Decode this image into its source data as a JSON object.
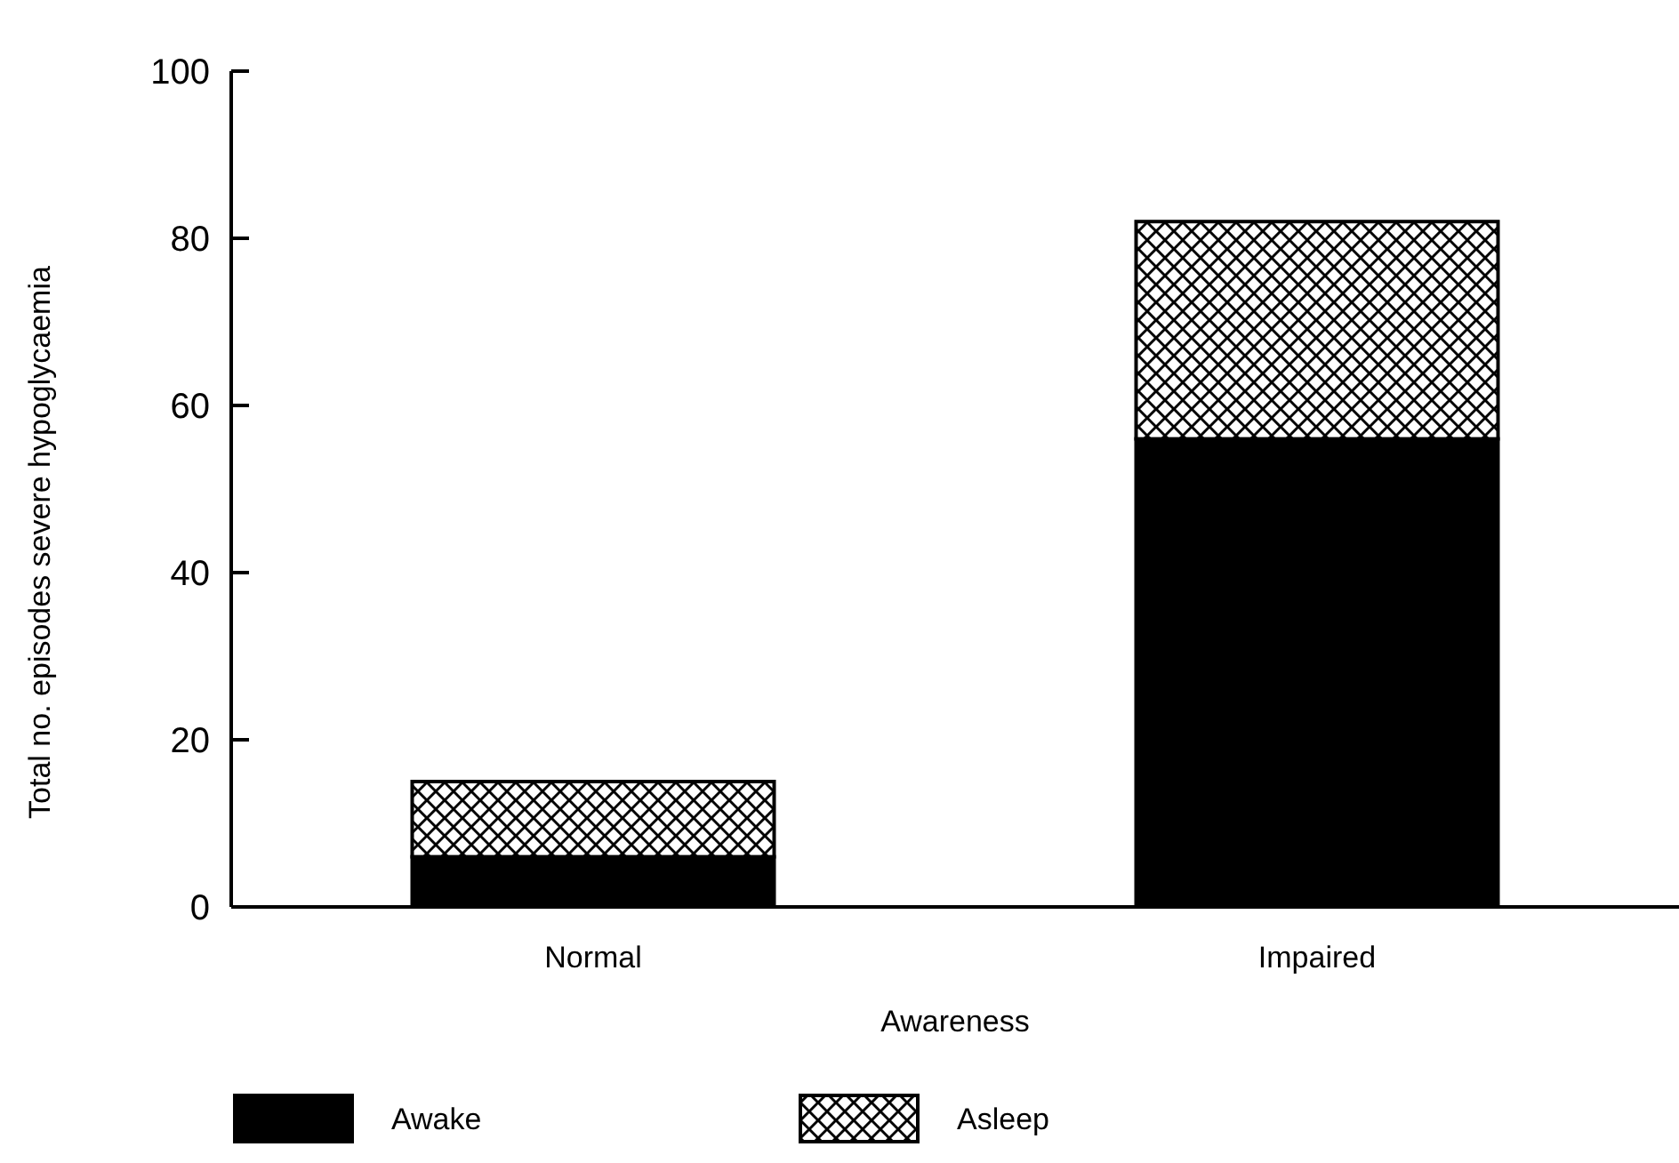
{
  "chart_data": {
    "type": "bar",
    "stacked": true,
    "xlabel": "Awareness",
    "ylabel": "Total no. episodes severe hypoglycaemia",
    "categories": [
      "Normal",
      "Impaired"
    ],
    "series": [
      {
        "name": "Awake",
        "color": "#000000",
        "values": [
          6,
          56
        ]
      },
      {
        "name": "Asleep",
        "color": "#000000",
        "values": [
          9,
          26
        ]
      }
    ],
    "ylim": [
      0,
      100
    ],
    "yticks": [
      0,
      20,
      40,
      60,
      80,
      100
    ],
    "grid": false,
    "legend": "bottom"
  }
}
